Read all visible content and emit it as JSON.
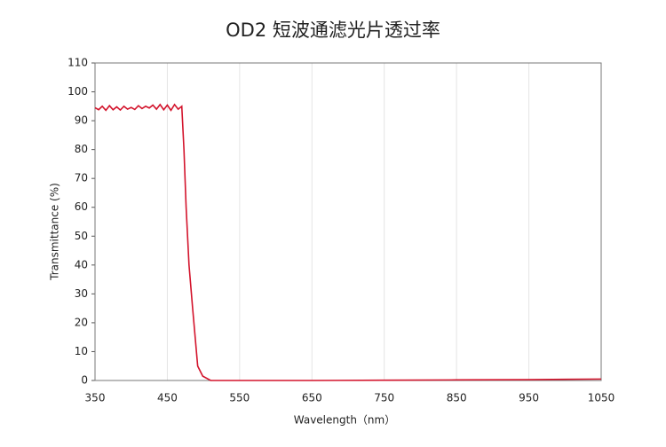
{
  "chart_data": {
    "type": "line",
    "title": "OD2 短波通滤光片透过率",
    "x_label": "Wavelength（nm）",
    "y_label": "Transmittance (%)",
    "x": [
      350,
      355,
      360,
      365,
      370,
      375,
      380,
      385,
      390,
      395,
      400,
      405,
      410,
      415,
      420,
      425,
      430,
      435,
      440,
      445,
      450,
      455,
      460,
      465,
      470,
      473,
      476,
      480,
      485,
      492,
      499,
      510,
      550,
      650,
      750,
      850,
      950,
      1050
    ],
    "series": [
      {
        "name": "Transmittance",
        "color": "#d3142c",
        "values": [
          94.5,
          93.8,
          95,
          93.6,
          95.2,
          93.8,
          94.8,
          93.7,
          95,
          94,
          94.6,
          93.9,
          95.2,
          94.2,
          95,
          94.4,
          95.4,
          94,
          95.6,
          93.8,
          95.4,
          93.6,
          95.6,
          94,
          95,
          80,
          60,
          40,
          25,
          5,
          1.5,
          0,
          0,
          0,
          0.1,
          0.2,
          0.3,
          0.5
        ]
      }
    ],
    "xlim": [
      350,
      1050
    ],
    "xticks": [
      350,
      450,
      550,
      650,
      750,
      850,
      950,
      1050
    ],
    "ylim": [
      0,
      110
    ],
    "yticks": [
      0,
      10,
      20,
      30,
      40,
      50,
      60,
      70,
      80,
      90,
      100,
      110
    ],
    "grid": true
  }
}
